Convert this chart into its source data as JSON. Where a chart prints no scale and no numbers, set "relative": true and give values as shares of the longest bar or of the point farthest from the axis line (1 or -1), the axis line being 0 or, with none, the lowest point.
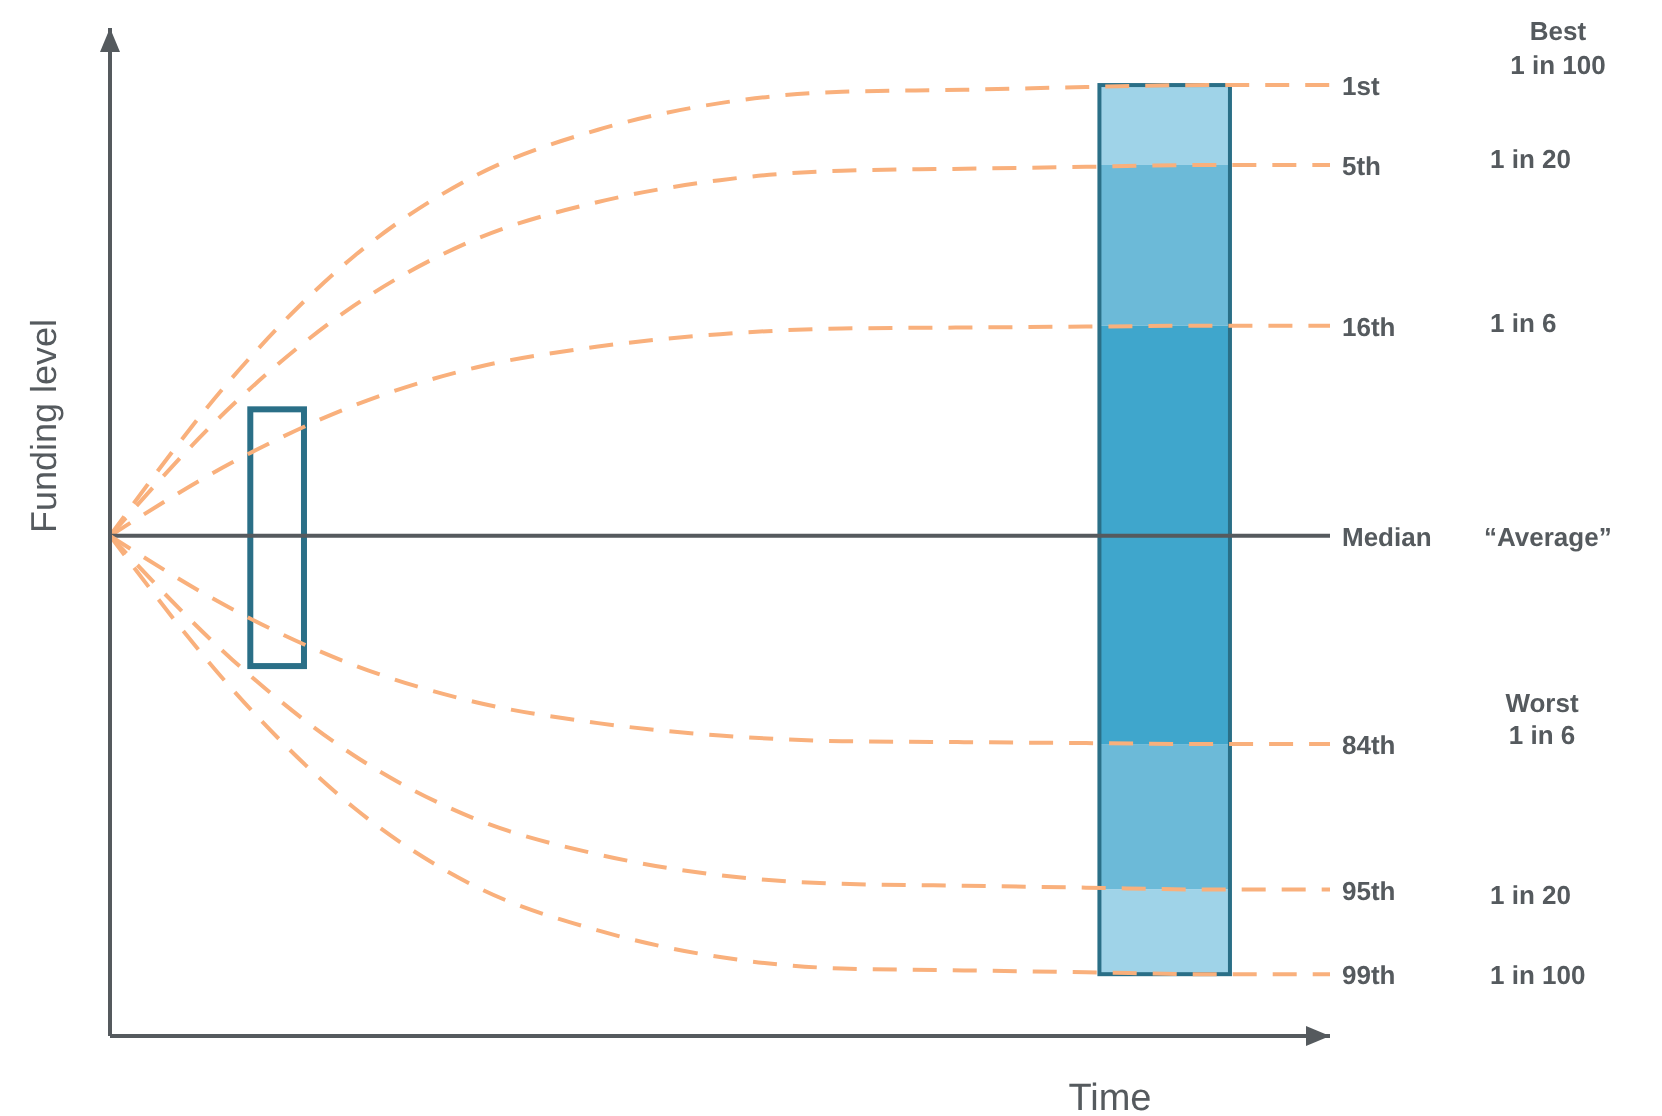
{
  "chart_data": {
    "type": "line",
    "relative": true,
    "xlabel": "Time",
    "ylabel": "Funding level",
    "categories": [
      null,
      null,
      null,
      null,
      null,
      null,
      null,
      null,
      null,
      null,
      null
    ],
    "marker": "none",
    "line_style": "dashed",
    "series": [
      {
        "name": "1st",
        "color": "#f9b07c",
        "values": [
          0.526,
          0.692,
          0.82,
          0.905,
          0.953,
          0.981,
          0.993,
          0.995,
          0.998,
          1,
          1
        ]
      },
      {
        "name": "5th",
        "color": "#f9b07c",
        "values": [
          0.526,
          0.663,
          0.768,
          0.838,
          0.877,
          0.9,
          0.91,
          0.912,
          0.914,
          0.916,
          0.916
        ]
      },
      {
        "name": "16th",
        "color": "#f9b07c",
        "values": [
          0.526,
          0.603,
          0.663,
          0.703,
          0.725,
          0.738,
          0.744,
          0.745,
          0.746,
          0.747,
          0.747
        ]
      },
      {
        "name": "Median",
        "color": "#555a5e",
        "line_style": "solid",
        "values": [
          0.526,
          0.526,
          0.526,
          0.526,
          0.526,
          0.526,
          0.526,
          0.526,
          0.526,
          0.526,
          0.526
        ]
      },
      {
        "name": "84th",
        "color": "#f9b07c",
        "values": [
          0.526,
          0.449,
          0.39,
          0.351,
          0.329,
          0.316,
          0.31,
          0.309,
          0.308,
          0.307,
          0.307
        ]
      },
      {
        "name": "95th",
        "color": "#f9b07c",
        "values": [
          0.526,
          0.396,
          0.295,
          0.228,
          0.191,
          0.169,
          0.16,
          0.158,
          0.156,
          0.154,
          0.154
        ]
      },
      {
        "name": "99th",
        "color": "#f9b07c",
        "values": [
          0.526,
          0.365,
          0.24,
          0.157,
          0.111,
          0.083,
          0.071,
          0.069,
          0.067,
          0.065,
          0.065
        ]
      }
    ],
    "annotations": [
      "Best",
      "1 in 100",
      "1 in 20",
      "1 in 6",
      "“Average”",
      "Worst",
      "1 in 6",
      "1 in 20",
      "1 in 100"
    ]
  }
}
